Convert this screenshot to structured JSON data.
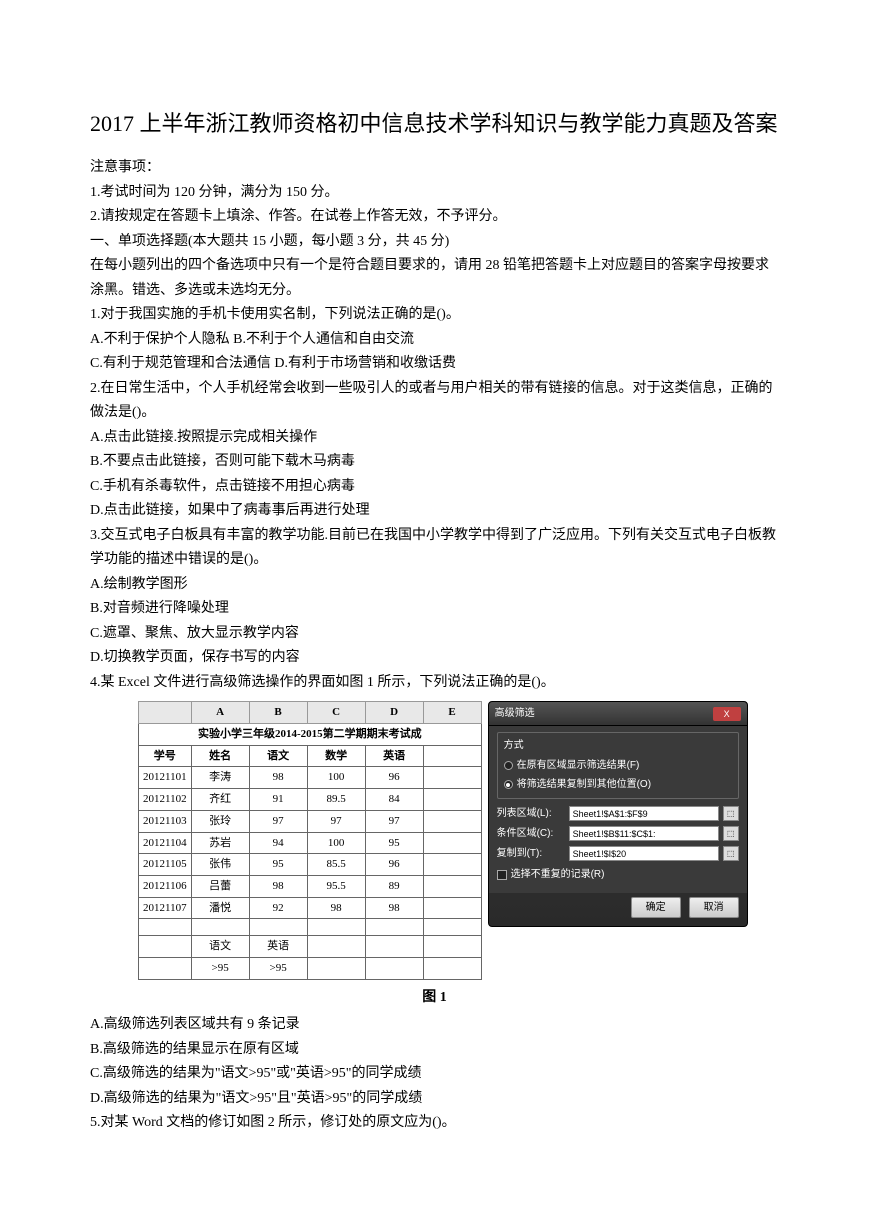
{
  "title": "2017 上半年浙江教师资格初中信息技术学科知识与教学能力真题及答案",
  "notice_header": "注意事项：",
  "notice_1": "1.考试时间为 120 分钟，满分为 150 分。",
  "notice_2": "2.请按规定在答题卡上填涂、作答。在试卷上作答无效，不予评分。",
  "section_1": "一、单项选择题(本大题共 15 小题，每小题 3 分，共 45 分)",
  "instruction": "在每小题列出的四个备选项中只有一个是符合题目要求的，请用 28 铅笔把答题卡上对应题目的答案字母按要求涂黑。错选、多选或未选均无分。",
  "q1": "1.对于我国实施的手机卡使用实名制，下列说法正确的是()。",
  "q1_ab": "A.不利于保护个人隐私 B.不利于个人通信和自由交流",
  "q1_cd": "C.有利于规范管理和合法通信 D.有利于市场营销和收缴话费",
  "q2": "2.在日常生活中，个人手机经常会收到一些吸引人的或者与用户相关的带有链接的信息。对于这类信息，正确的做法是()。",
  "q2_a": "A.点击此链接.按照提示完成相关操作",
  "q2_b": "B.不要点击此链接，否则可能下载木马病毒",
  "q2_c": "C.手机有杀毒软件，点击链接不用担心病毒",
  "q2_d": "D.点击此链接，如果中了病毒事后再进行处理",
  "q3": "3.交互式电子白板具有丰富的教学功能.目前已在我国中小学教学中得到了广泛应用。下列有关交互式电子白板教学功能的描述中错误的是()。",
  "q3_a": "A.绘制教学图形",
  "q3_b": "B.对音频进行降噪处理",
  "q3_c": "C.遮罩、聚焦、放大显示教学内容",
  "q3_d": "D.切换教学页面，保存书写的内容",
  "q4": "4.某 Excel 文件进行高级筛选操作的界面如图 1 所示，下列说法正确的是()。",
  "excel": {
    "col_headers": [
      "",
      "A",
      "B",
      "C",
      "D",
      "E"
    ],
    "title": "实验小学三年级2014-2015第二学期期末考试成",
    "headers": [
      "学号",
      "姓名",
      "语文",
      "数学",
      "英语"
    ],
    "rows": [
      [
        "20121101",
        "李涛",
        "98",
        "100",
        "96"
      ],
      [
        "20121102",
        "齐红",
        "91",
        "89.5",
        "84"
      ],
      [
        "20121103",
        "张玲",
        "97",
        "97",
        "97"
      ],
      [
        "20121104",
        "苏岩",
        "94",
        "100",
        "95"
      ],
      [
        "20121105",
        "张伟",
        "95",
        "85.5",
        "96"
      ],
      [
        "20121106",
        "吕蕾",
        "98",
        "95.5",
        "89"
      ],
      [
        "20121107",
        "潘悦",
        "92",
        "98",
        "98"
      ]
    ],
    "criteria_headers": [
      "语文",
      "英语"
    ],
    "criteria_values": [
      ">95",
      ">95"
    ]
  },
  "dialog": {
    "title": "高级筛选",
    "close": "X",
    "group_title": "方式",
    "radio1": "在原有区域显示筛选结果(F)",
    "radio2": "将筛选结果复制到其他位置(O)",
    "field1_label": "列表区域(L):",
    "field1_value": "Sheet1!$A$1:$F$9",
    "field2_label": "条件区域(C):",
    "field2_value": "Sheet1!$B$11:$C$1:",
    "field3_label": "复制到(T):",
    "field3_value": "Sheet1!$I$20",
    "checkbox_label": "选择不重复的记录(R)",
    "btn_ok": "确定",
    "btn_cancel": "取消"
  },
  "figure_caption": "图 1",
  "q4_a": "A.高级筛选列表区域共有 9 条记录",
  "q4_b": "B.高级筛选的结果显示在原有区域",
  "q4_c": "C.高级筛选的结果为\"语文>95\"或\"英语>95\"的同学成绩",
  "q4_d": "D.高级筛选的结果为\"语文>95\"且\"英语>95\"的同学成绩",
  "q5": "5.对某 Word 文档的修订如图 2 所示，修订处的原文应为()。"
}
